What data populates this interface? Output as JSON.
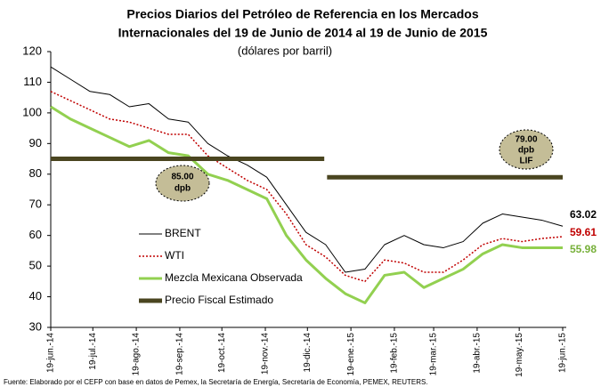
{
  "chart_data": {
    "type": "line",
    "title": [
      "Precios Diarios del Petróleo de Referencia en los Mercados",
      "Internacionales del 19 de Junio de 2014 al 19 de Junio de 2015"
    ],
    "subtitle": "(dólares por barril)",
    "source": "Fuente: Elaborado por el CEFP con base en datos de Pemex,  la Secretaría de Energía, Secretaría de Economía, PEMEX, REUTERS.",
    "annotations": [
      [
        "85.00",
        "dpb"
      ],
      [
        "79.00",
        "dpb",
        "LIF"
      ]
    ],
    "x": [
      "2014-06-19",
      "2014-07-03",
      "2014-07-17",
      "2014-07-31",
      "2014-08-14",
      "2014-08-28",
      "2014-09-11",
      "2014-09-25",
      "2014-10-09",
      "2014-10-23",
      "2014-11-06",
      "2014-11-20",
      "2014-12-04",
      "2014-12-18",
      "2015-01-01",
      "2015-01-15",
      "2015-01-29",
      "2015-02-12",
      "2015-02-26",
      "2015-03-12",
      "2015-03-26",
      "2015-04-09",
      "2015-04-23",
      "2015-05-07",
      "2015-05-21",
      "2015-06-04",
      "2015-06-19"
    ],
    "xlim": [
      "2014-06-19",
      "2015-06-19"
    ],
    "xticks": [
      {
        "value": "2014-06-19",
        "label": "19-jun.-14"
      },
      {
        "value": "2014-07-19",
        "label": "19-jul.-14"
      },
      {
        "value": "2014-08-19",
        "label": "19-ago.-14"
      },
      {
        "value": "2014-09-19",
        "label": "19-sep.-14"
      },
      {
        "value": "2014-10-19",
        "label": "19-oct.-14"
      },
      {
        "value": "2014-11-19",
        "label": "19-nov.-14"
      },
      {
        "value": "2014-12-19",
        "label": "19-dic.-14"
      },
      {
        "value": "2015-01-19",
        "label": "19-ene.-15"
      },
      {
        "value": "2015-02-19",
        "label": "19-feb.-15"
      },
      {
        "value": "2015-03-19",
        "label": "19-mar.-15"
      },
      {
        "value": "2015-04-19",
        "label": "19-abr.-15"
      },
      {
        "value": "2015-05-19",
        "label": "19-may.-15"
      },
      {
        "value": "2015-06-19",
        "label": "19-jun.-15"
      }
    ],
    "ylim": [
      30,
      120
    ],
    "yticks": [
      30,
      40,
      50,
      60,
      70,
      80,
      90,
      100,
      110,
      120
    ],
    "series": [
      {
        "name": "BRENT",
        "color": "#000000",
        "width": 1,
        "dash": "none",
        "values": [
          115,
          111,
          107,
          106,
          102,
          103,
          98,
          97,
          90,
          86,
          83,
          79,
          70,
          61,
          57,
          48,
          49,
          57,
          60,
          57,
          56,
          58,
          64,
          67,
          66,
          65,
          63.02
        ]
      },
      {
        "name": "WTI",
        "color": "#c00000",
        "width": 1.5,
        "dash": "2 2",
        "values": [
          107,
          104,
          101,
          98,
          97,
          95,
          93,
          93,
          86,
          82,
          78,
          75,
          67,
          57,
          53,
          47,
          45,
          52,
          51,
          48,
          48,
          52,
          57,
          59,
          58,
          59,
          59.61
        ]
      },
      {
        "name": "Mezcla Mexicana Observada",
        "color": "#92d050",
        "width": 3,
        "dash": "none",
        "values": [
          102,
          98,
          95,
          92,
          89,
          91,
          87,
          86,
          80,
          78,
          75,
          72,
          60,
          52,
          46,
          41,
          38,
          47,
          48,
          43,
          46,
          49,
          54,
          57,
          56,
          56,
          55.98
        ]
      },
      {
        "name": "Precio Fiscal Estimado",
        "color": "#4a4520",
        "width": 5,
        "dash": "none",
        "x": [
          "2014-06-19",
          "2014-12-31",
          "2015-01-01",
          "2015-01-02",
          "2015-06-19"
        ],
        "values": [
          85,
          85,
          null,
          79,
          79
        ]
      }
    ]
  }
}
